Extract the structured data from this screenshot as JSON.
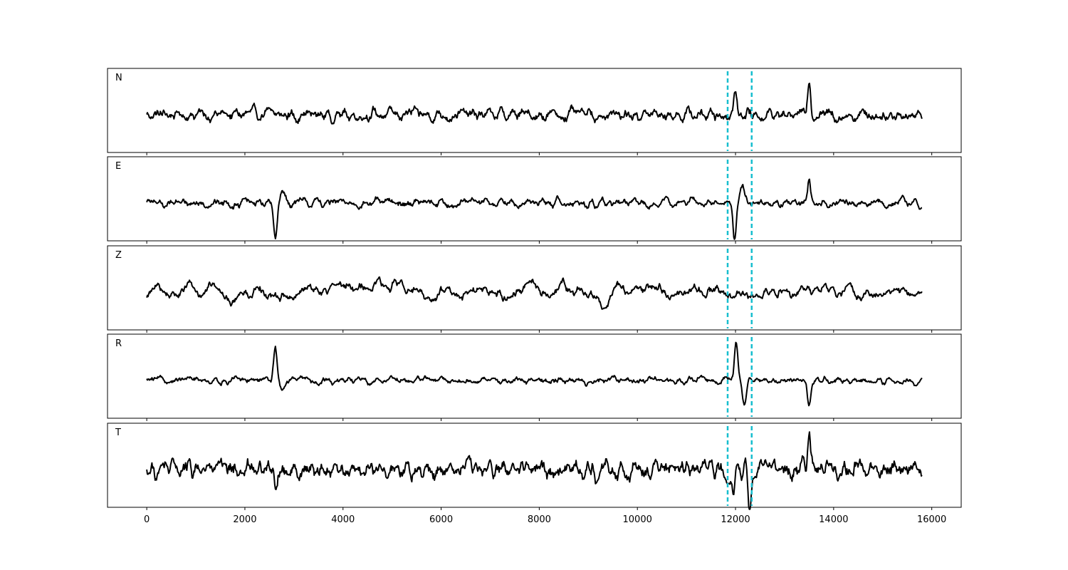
{
  "chart_data": {
    "type": "line",
    "title": "",
    "xlabel": "",
    "ylabel": "",
    "xlim": [
      -800,
      16600
    ],
    "x_ticks": [
      0,
      2000,
      4000,
      6000,
      8000,
      10000,
      12000,
      14000,
      16000
    ],
    "x_tick_labels": [
      "0",
      "2000",
      "4000",
      "6000",
      "8000",
      "10000",
      "12000",
      "14000",
      "16000"
    ],
    "grid": false,
    "legend": "none",
    "n_samples": 15800,
    "vertical_markers": {
      "color": "#17becf",
      "style": "dashed",
      "x": [
        11840,
        12330
      ]
    },
    "panels": [
      {
        "label": "N",
        "noise_amplitude": 0.3,
        "smoothness": 15,
        "events": [
          {
            "x": 12000,
            "amplitude": 0.75,
            "width": 45
          },
          {
            "x": 13500,
            "amplitude": 1.0,
            "width": 45
          }
        ]
      },
      {
        "label": "E",
        "noise_amplitude": 0.2,
        "smoothness": 15,
        "events": [
          {
            "x": 2620,
            "amplitude": -1.0,
            "width": 50
          },
          {
            "x": 2760,
            "amplitude": 0.35,
            "width": 70
          },
          {
            "x": 11980,
            "amplitude": -0.95,
            "width": 45
          },
          {
            "x": 12130,
            "amplitude": 0.55,
            "width": 60
          },
          {
            "x": 13500,
            "amplitude": 0.7,
            "width": 40
          }
        ]
      },
      {
        "label": "Z",
        "noise_amplitude": 0.45,
        "smoothness": 45,
        "events": []
      },
      {
        "label": "R",
        "noise_amplitude": 0.15,
        "smoothness": 15,
        "events": [
          {
            "x": 2620,
            "amplitude": 0.9,
            "width": 50
          },
          {
            "x": 2760,
            "amplitude": -0.3,
            "width": 60
          },
          {
            "x": 12010,
            "amplitude": 1.0,
            "width": 45
          },
          {
            "x": 12180,
            "amplitude": -0.55,
            "width": 55
          },
          {
            "x": 13500,
            "amplitude": -0.7,
            "width": 45
          }
        ]
      },
      {
        "label": "T",
        "noise_amplitude": 0.38,
        "smoothness": 14,
        "events": [
          {
            "x": 2620,
            "amplitude": -0.55,
            "width": 45
          },
          {
            "x": 11960,
            "amplitude": -0.8,
            "width": 40
          },
          {
            "x": 12290,
            "amplitude": -0.85,
            "width": 40
          },
          {
            "x": 13500,
            "amplitude": 0.9,
            "width": 45
          }
        ]
      }
    ]
  }
}
